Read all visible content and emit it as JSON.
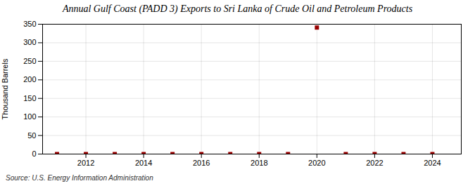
{
  "chart_data": {
    "type": "scatter",
    "title": "Annual Gulf Coast (PADD 3) Exports to Sri Lanka of Crude Oil and Petroleum Products",
    "ylabel": "Thousand Barrels",
    "source": "Source: U.S. Energy Information Administration",
    "x": [
      2011,
      2012,
      2013,
      2014,
      2015,
      2016,
      2017,
      2018,
      2019,
      2020,
      2021,
      2022,
      2023,
      2024
    ],
    "values": [
      0,
      0,
      0,
      0,
      0,
      0,
      0,
      0,
      0,
      341,
      0,
      0,
      0,
      0
    ],
    "color": "#990000",
    "marker": "square",
    "xlim": [
      2010.5,
      2025
    ],
    "xticks": [
      2012,
      2014,
      2016,
      2018,
      2020,
      2022,
      2024
    ],
    "ylim": [
      0,
      350
    ],
    "yticks": [
      0,
      50,
      100,
      150,
      200,
      250,
      300,
      350
    ],
    "grid": true
  }
}
